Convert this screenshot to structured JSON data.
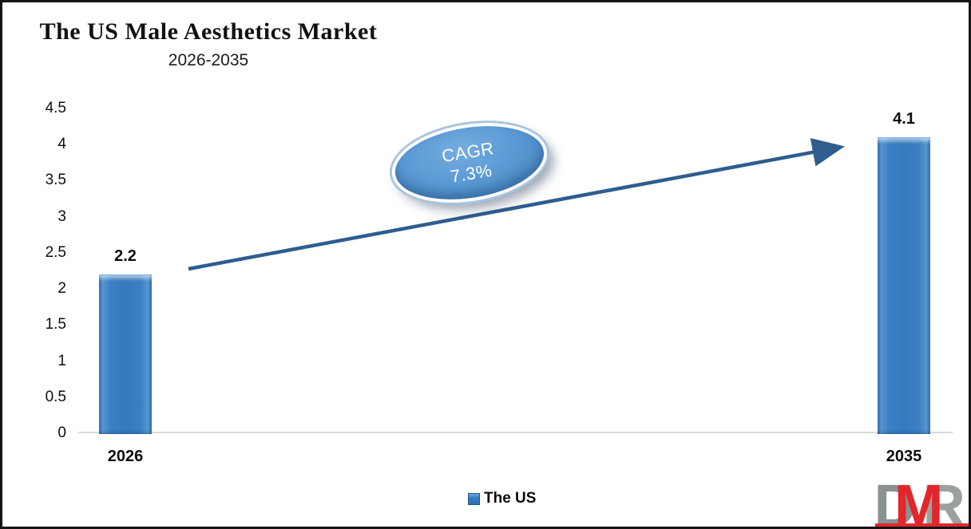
{
  "header": {
    "title": "The US Male Aesthetics Market",
    "subtitle": "2026-2035"
  },
  "chart_data": {
    "type": "bar",
    "title": "The US Male Aesthetics Market",
    "subtitle": "2026-2035",
    "categories": [
      "2026",
      "2035"
    ],
    "values": [
      2.2,
      4.1
    ],
    "value_labels": [
      "2.2",
      "4.1"
    ],
    "series": [
      {
        "name": "The US",
        "values": [
          2.2,
          4.1
        ]
      }
    ],
    "ylim": [
      0,
      4.5
    ],
    "yticks": [
      "4.5",
      "4",
      "3.5",
      "3",
      "2.5",
      "2",
      "1.5",
      "1",
      "0.5",
      "0"
    ],
    "grid": false,
    "legend_position": "bottom-center",
    "annotation": {
      "label": "CAGR",
      "value": "7.3%"
    }
  },
  "legend": {
    "label": "The US",
    "swatch_color": "#3579BE"
  },
  "logo": {
    "letter_d": "D",
    "letter_m": "M",
    "letter_r": "R",
    "red": "#E2262B",
    "gray": "#8A918E"
  },
  "colors": {
    "bar_fill": "#3579BE",
    "bar_edge_dark": "#2A69AE",
    "bar_highlight": "#6EA9DE",
    "arrow": "#2E5D8E",
    "oval_fill": "#5B9BD5",
    "oval_ring": "#A9C4DD",
    "axis_line": "#D8D8D8",
    "text": "#0C0C0C"
  }
}
